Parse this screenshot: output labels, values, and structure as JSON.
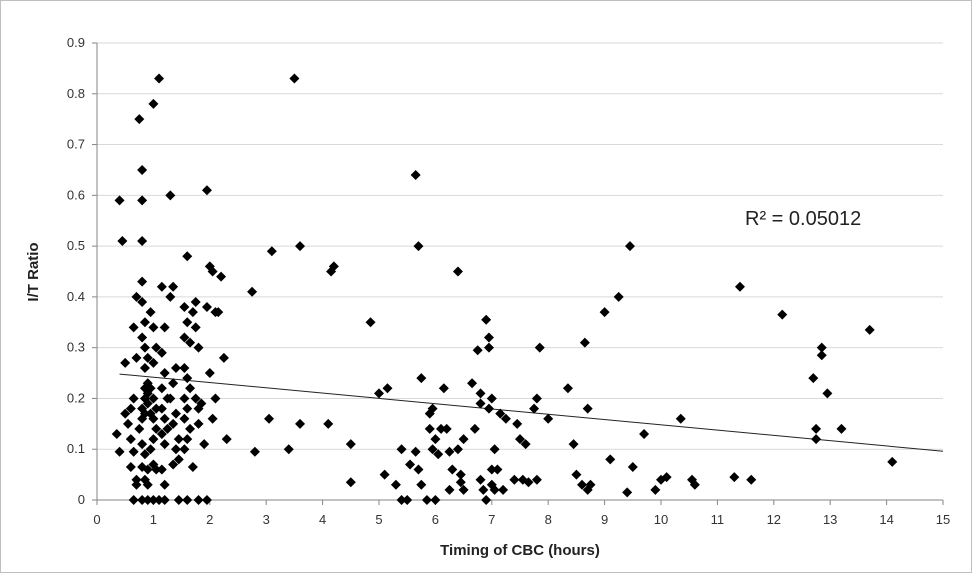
{
  "chart_data": {
    "type": "scatter",
    "title": "",
    "xlabel": "Timing of CBC (hours)",
    "ylabel": "I/T Ratio",
    "xlim": [
      0,
      15
    ],
    "ylim": [
      0,
      0.9
    ],
    "x_ticks": [
      "0",
      "1",
      "2",
      "3",
      "4",
      "5",
      "6",
      "7",
      "8",
      "9",
      "10",
      "11",
      "12",
      "13",
      "14",
      "15"
    ],
    "y_ticks": [
      "0",
      "0.1",
      "0.2",
      "0.3",
      "0.4",
      "0.5",
      "0.6",
      "0.7",
      "0.8",
      "0.9"
    ],
    "grid": "horizontal",
    "legend": "none",
    "marker": "diamond",
    "marker_color": "#000000",
    "annotation": "R² = 0.05012",
    "trendline": {
      "type": "linear",
      "points": [
        [
          0.4,
          0.248
        ],
        [
          15,
          0.096
        ]
      ]
    },
    "series": [
      {
        "points": [
          [
            0.4,
            0.59
          ],
          [
            0.45,
            0.51
          ],
          [
            0.35,
            0.13
          ],
          [
            0.4,
            0.095
          ],
          [
            0.5,
            0.27
          ],
          [
            0.5,
            0.17
          ],
          [
            0.55,
            0.15
          ],
          [
            0.6,
            0.18
          ],
          [
            0.6,
            0.12
          ],
          [
            0.65,
            0.2
          ],
          [
            0.65,
            0.34
          ],
          [
            0.7,
            0.28
          ],
          [
            0.7,
            0.4
          ],
          [
            0.65,
            0.095
          ],
          [
            0.6,
            0.065
          ],
          [
            0.7,
            0.04
          ],
          [
            0.7,
            0.03
          ],
          [
            0.65,
            0
          ],
          [
            0.75,
            0.75
          ],
          [
            0.8,
            0.65
          ],
          [
            0.8,
            0.59
          ],
          [
            0.8,
            0.51
          ],
          [
            0.8,
            0.43
          ],
          [
            0.8,
            0.39
          ],
          [
            0.85,
            0.35
          ],
          [
            0.8,
            0.32
          ],
          [
            0.85,
            0.3
          ],
          [
            0.9,
            0.28
          ],
          [
            0.85,
            0.26
          ],
          [
            0.9,
            0.23
          ],
          [
            0.85,
            0.22
          ],
          [
            0.9,
            0.21
          ],
          [
            0.85,
            0.2
          ],
          [
            0.9,
            0.19
          ],
          [
            0.8,
            0.18
          ],
          [
            0.85,
            0.17
          ],
          [
            0.8,
            0.16
          ],
          [
            0.75,
            0.14
          ],
          [
            0.8,
            0.11
          ],
          [
            0.85,
            0.09
          ],
          [
            0.8,
            0.065
          ],
          [
            0.9,
            0.06
          ],
          [
            0.85,
            0.04
          ],
          [
            0.9,
            0.03
          ],
          [
            0.8,
            0
          ],
          [
            0.9,
            0
          ],
          [
            1.0,
            0.78
          ],
          [
            1.1,
            0.83
          ],
          [
            0.95,
            0.37
          ],
          [
            1.0,
            0.34
          ],
          [
            1.05,
            0.3
          ],
          [
            1.0,
            0.27
          ],
          [
            0.95,
            0.22
          ],
          [
            1.0,
            0.2
          ],
          [
            1.05,
            0.18
          ],
          [
            0.95,
            0.17
          ],
          [
            1.0,
            0.16
          ],
          [
            1.05,
            0.14
          ],
          [
            1.0,
            0.12
          ],
          [
            0.95,
            0.1
          ],
          [
            1.0,
            0.07
          ],
          [
            1.05,
            0.06
          ],
          [
            1.0,
            0
          ],
          [
            1.15,
            0.42
          ],
          [
            1.2,
            0.34
          ],
          [
            1.15,
            0.29
          ],
          [
            1.2,
            0.25
          ],
          [
            1.15,
            0.22
          ],
          [
            1.25,
            0.2
          ],
          [
            1.15,
            0.18
          ],
          [
            1.2,
            0.16
          ],
          [
            1.25,
            0.14
          ],
          [
            1.15,
            0.13
          ],
          [
            1.2,
            0.11
          ],
          [
            1.15,
            0.06
          ],
          [
            1.2,
            0.03
          ],
          [
            1.1,
            0
          ],
          [
            1.2,
            0
          ],
          [
            1.3,
            0.6
          ],
          [
            1.35,
            0.42
          ],
          [
            1.3,
            0.4
          ],
          [
            1.4,
            0.26
          ],
          [
            1.35,
            0.23
          ],
          [
            1.3,
            0.2
          ],
          [
            1.4,
            0.17
          ],
          [
            1.35,
            0.15
          ],
          [
            1.45,
            0.12
          ],
          [
            1.4,
            0.1
          ],
          [
            1.45,
            0.08
          ],
          [
            1.35,
            0.07
          ],
          [
            1.45,
            0
          ],
          [
            1.6,
            0.48
          ],
          [
            1.55,
            0.38
          ],
          [
            1.6,
            0.35
          ],
          [
            1.55,
            0.32
          ],
          [
            1.65,
            0.31
          ],
          [
            1.55,
            0.26
          ],
          [
            1.6,
            0.24
          ],
          [
            1.65,
            0.22
          ],
          [
            1.55,
            0.2
          ],
          [
            1.6,
            0.18
          ],
          [
            1.55,
            0.16
          ],
          [
            1.65,
            0.14
          ],
          [
            1.6,
            0.12
          ],
          [
            1.55,
            0.1
          ],
          [
            1.7,
            0.065
          ],
          [
            1.6,
            0
          ],
          [
            1.8,
            0
          ],
          [
            1.75,
            0.39
          ],
          [
            1.7,
            0.37
          ],
          [
            1.75,
            0.34
          ],
          [
            1.8,
            0.3
          ],
          [
            1.75,
            0.2
          ],
          [
            1.8,
            0.18
          ],
          [
            1.85,
            0.19
          ],
          [
            1.8,
            0.15
          ],
          [
            1.9,
            0.11
          ],
          [
            1.95,
            0.61
          ],
          [
            2.0,
            0.46
          ],
          [
            2.05,
            0.45
          ],
          [
            1.95,
            0.38
          ],
          [
            2.1,
            0.37
          ],
          [
            2.15,
            0.37
          ],
          [
            2.0,
            0.25
          ],
          [
            2.1,
            0.2
          ],
          [
            2.05,
            0.16
          ],
          [
            1.95,
            0
          ],
          [
            2.2,
            0.44
          ],
          [
            2.25,
            0.28
          ],
          [
            2.3,
            0.12
          ],
          [
            2.75,
            0.41
          ],
          [
            2.8,
            0.095
          ],
          [
            3.05,
            0.16
          ],
          [
            3.1,
            0.49
          ],
          [
            3.4,
            0.1
          ],
          [
            3.5,
            0.83
          ],
          [
            3.6,
            0.5
          ],
          [
            3.6,
            0.15
          ],
          [
            4.1,
            0.15
          ],
          [
            4.15,
            0.45
          ],
          [
            4.2,
            0.46
          ],
          [
            4.85,
            0.35
          ],
          [
            4.5,
            0.11
          ],
          [
            4.5,
            0.035
          ],
          [
            5.0,
            0.21
          ],
          [
            5.15,
            0.22
          ],
          [
            5.1,
            0.05
          ],
          [
            5.3,
            0.03
          ],
          [
            5.4,
            0.1
          ],
          [
            5.4,
            0
          ],
          [
            5.5,
            0
          ],
          [
            5.55,
            0.07
          ],
          [
            5.65,
            0.64
          ],
          [
            5.7,
            0.5
          ],
          [
            5.75,
            0.24
          ],
          [
            5.65,
            0.095
          ],
          [
            5.7,
            0.06
          ],
          [
            5.75,
            0.03
          ],
          [
            5.9,
            0.17
          ],
          [
            5.95,
            0.18
          ],
          [
            5.9,
            0.14
          ],
          [
            6.0,
            0.12
          ],
          [
            5.95,
            0.1
          ],
          [
            6.05,
            0.09
          ],
          [
            6.1,
            0.14
          ],
          [
            6.2,
            0.14
          ],
          [
            6.0,
            0
          ],
          [
            5.85,
            0
          ],
          [
            6.15,
            0.22
          ],
          [
            6.25,
            0.095
          ],
          [
            6.3,
            0.06
          ],
          [
            6.25,
            0.02
          ],
          [
            6.4,
            0.45
          ],
          [
            6.5,
            0.12
          ],
          [
            6.4,
            0.1
          ],
          [
            6.45,
            0.05
          ],
          [
            6.5,
            0.02
          ],
          [
            6.45,
            0.035
          ],
          [
            6.65,
            0.23
          ],
          [
            6.7,
            0.14
          ],
          [
            6.75,
            0.295
          ],
          [
            6.8,
            0.21
          ],
          [
            6.8,
            0.19
          ],
          [
            6.8,
            0.04
          ],
          [
            6.85,
            0.02
          ],
          [
            6.9,
            0.355
          ],
          [
            6.95,
            0.32
          ],
          [
            6.95,
            0.3
          ],
          [
            7.0,
            0.2
          ],
          [
            6.95,
            0.18
          ],
          [
            7.05,
            0.1
          ],
          [
            7.0,
            0.06
          ],
          [
            7.1,
            0.06
          ],
          [
            7.0,
            0.03
          ],
          [
            7.05,
            0.02
          ],
          [
            6.9,
            0
          ],
          [
            7.15,
            0.17
          ],
          [
            7.25,
            0.16
          ],
          [
            7.2,
            0.02
          ],
          [
            7.4,
            0.04
          ],
          [
            7.45,
            0.15
          ],
          [
            7.5,
            0.12
          ],
          [
            7.6,
            0.11
          ],
          [
            7.55,
            0.04
          ],
          [
            7.65,
            0.035
          ],
          [
            7.75,
            0.18
          ],
          [
            7.8,
            0.2
          ],
          [
            7.85,
            0.3
          ],
          [
            7.8,
            0.04
          ],
          [
            8.0,
            0.16
          ],
          [
            8.35,
            0.22
          ],
          [
            8.45,
            0.11
          ],
          [
            8.5,
            0.05
          ],
          [
            8.65,
            0.31
          ],
          [
            8.7,
            0.18
          ],
          [
            8.6,
            0.03
          ],
          [
            8.7,
            0.02
          ],
          [
            8.75,
            0.03
          ],
          [
            9.0,
            0.37
          ],
          [
            9.1,
            0.08
          ],
          [
            9.25,
            0.4
          ],
          [
            9.45,
            0.5
          ],
          [
            9.4,
            0.015
          ],
          [
            9.5,
            0.065
          ],
          [
            9.7,
            0.13
          ],
          [
            9.9,
            0.02
          ],
          [
            10.0,
            0.04
          ],
          [
            10.1,
            0.045
          ],
          [
            10.35,
            0.16
          ],
          [
            10.55,
            0.04
          ],
          [
            10.6,
            0.03
          ],
          [
            11.3,
            0.045
          ],
          [
            11.4,
            0.42
          ],
          [
            11.6,
            0.04
          ],
          [
            12.15,
            0.365
          ],
          [
            12.7,
            0.24
          ],
          [
            12.75,
            0.14
          ],
          [
            12.75,
            0.12
          ],
          [
            12.85,
            0.3
          ],
          [
            12.85,
            0.285
          ],
          [
            12.95,
            0.21
          ],
          [
            13.2,
            0.14
          ],
          [
            13.7,
            0.335
          ],
          [
            14.1,
            0.075
          ]
        ]
      }
    ]
  }
}
